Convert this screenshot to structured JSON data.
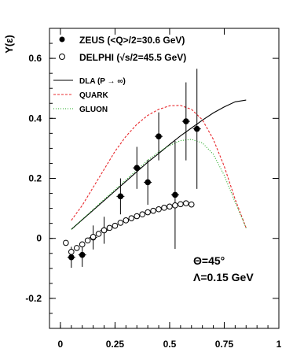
{
  "chart_data": {
    "type": "scatter",
    "ylabel": "Y(ε)",
    "xlabel": "",
    "xlim": [
      -0.05,
      1.0
    ],
    "ylim": [
      -0.3,
      0.7
    ],
    "x_ticks": [
      {
        "v": 0,
        "label": "0"
      },
      {
        "v": 0.25,
        "label": "0.25"
      },
      {
        "v": 0.5,
        "label": "0.5"
      },
      {
        "v": 0.75,
        "label": "0.75"
      },
      {
        "v": 1.0,
        "label": "1"
      }
    ],
    "y_ticks": [
      {
        "v": -0.2,
        "label": "-0.2"
      },
      {
        "v": 0,
        "label": "0"
      },
      {
        "v": 0.2,
        "label": "0.2"
      },
      {
        "v": 0.4,
        "label": "0.4"
      },
      {
        "v": 0.6,
        "label": "0.6"
      }
    ],
    "points": [
      {
        "name": "ZEUS (<Q>/2=30.6 GeV)",
        "marker": "filled-circle",
        "x": [
          0.05,
          0.1,
          0.15,
          0.2,
          0.275,
          0.35,
          0.4,
          0.45,
          0.525,
          0.575,
          0.625
        ],
        "y": [
          -0.063,
          -0.055,
          0.003,
          0.027,
          0.14,
          0.235,
          0.187,
          0.34,
          0.145,
          0.39,
          0.365
        ],
        "yerr": [
          0.035,
          0.04,
          0.04,
          0.045,
          0.06,
          0.07,
          0.075,
          0.08,
          0.18,
          0.13,
          0.2
        ]
      },
      {
        "name": "DELPHI (√s/2=45.5 GeV)",
        "marker": "open-circle",
        "x": [
          0.025,
          0.05,
          0.075,
          0.1,
          0.125,
          0.15,
          0.175,
          0.2,
          0.225,
          0.25,
          0.275,
          0.3,
          0.325,
          0.35,
          0.375,
          0.4,
          0.425,
          0.45,
          0.475,
          0.5,
          0.525,
          0.55,
          0.575,
          0.6
        ],
        "y": [
          -0.015,
          -0.045,
          -0.032,
          -0.02,
          -0.007,
          0.005,
          0.015,
          0.027,
          0.035,
          0.042,
          0.052,
          0.06,
          0.067,
          0.074,
          0.08,
          0.087,
          0.092,
          0.097,
          0.102,
          0.106,
          0.11,
          0.114,
          0.117,
          0.113
        ]
      }
    ],
    "curves": [
      {
        "name": "DLA (P → ∞)",
        "color": "#000000",
        "dash": "solid",
        "x": [
          0.05,
          0.1,
          0.15,
          0.2,
          0.25,
          0.3,
          0.35,
          0.4,
          0.45,
          0.5,
          0.55,
          0.6,
          0.65,
          0.7,
          0.75,
          0.8,
          0.85
        ],
        "y": [
          0.03,
          0.062,
          0.094,
          0.126,
          0.158,
          0.19,
          0.222,
          0.254,
          0.283,
          0.313,
          0.342,
          0.368,
          0.394,
          0.418,
          0.438,
          0.455,
          0.461
        ]
      },
      {
        "name": "QUARK",
        "color": "#e8282c",
        "dash": "dashed",
        "x": [
          0.05,
          0.1,
          0.15,
          0.2,
          0.25,
          0.3,
          0.35,
          0.4,
          0.45,
          0.5,
          0.55,
          0.6,
          0.65,
          0.7,
          0.75,
          0.8,
          0.85
        ],
        "y": [
          0.06,
          0.11,
          0.17,
          0.23,
          0.29,
          0.34,
          0.38,
          0.41,
          0.43,
          0.442,
          0.443,
          0.43,
          0.395,
          0.33,
          0.24,
          0.13,
          0.035
        ]
      },
      {
        "name": "GLUON",
        "color": "#1fa81f",
        "dash": "dotted",
        "x": [
          0.05,
          0.1,
          0.15,
          0.2,
          0.25,
          0.3,
          0.35,
          0.4,
          0.45,
          0.5,
          0.55,
          0.6,
          0.65,
          0.7,
          0.75,
          0.8,
          0.85
        ],
        "y": [
          0.03,
          0.063,
          0.096,
          0.13,
          0.162,
          0.195,
          0.228,
          0.26,
          0.288,
          0.31,
          0.326,
          0.33,
          0.318,
          0.28,
          0.21,
          0.12,
          0.035
        ]
      }
    ],
    "annotations": [
      "Θ=45°",
      "Λ=0.15 GeV"
    ],
    "grid": false,
    "legend": "top-left"
  }
}
